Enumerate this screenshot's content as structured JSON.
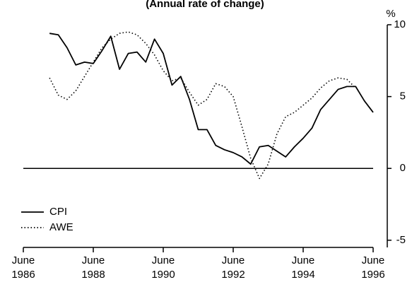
{
  "chart_data": {
    "type": "line",
    "title": "(Annual rate of change)",
    "y_unit": "%",
    "x": [
      1987.25,
      1987.5,
      1987.75,
      1988,
      1988.25,
      1988.5,
      1988.75,
      1989,
      1989.25,
      1989.5,
      1989.75,
      1990,
      1990.25,
      1990.5,
      1990.75,
      1991,
      1991.25,
      1991.5,
      1991.75,
      1992,
      1992.25,
      1992.5,
      1992.75,
      1993,
      1993.25,
      1993.5,
      1993.75,
      1994,
      1994.25,
      1994.5,
      1994.75,
      1995,
      1995.25,
      1995.5,
      1995.75,
      1996,
      1996.25,
      1996.5
    ],
    "series": [
      {
        "name": "CPI",
        "color": "#000000",
        "style": "solid",
        "values": [
          9.4,
          9.3,
          8.4,
          7.2,
          7.4,
          7.3,
          8.2,
          9.2,
          6.9,
          8.0,
          8.1,
          7.4,
          9.0,
          8.0,
          5.8,
          6.4,
          4.8,
          2.7,
          2.7,
          1.6,
          1.3,
          1.1,
          0.8,
          0.3,
          1.5,
          1.6,
          1.2,
          0.8,
          1.5,
          2.1,
          2.8,
          4.1,
          4.8,
          5.5,
          5.7,
          5.7,
          4.7,
          3.9
        ]
      },
      {
        "name": "AWE",
        "color": "#000000",
        "style": "dotted",
        "values": [
          6.3,
          5.1,
          4.8,
          5.4,
          6.4,
          7.4,
          8.4,
          9.0,
          9.4,
          9.5,
          9.3,
          8.7,
          7.9,
          6.8,
          6.1,
          6.3,
          5.3,
          4.4,
          4.8,
          5.9,
          5.7,
          5.0,
          2.9,
          0.7,
          -0.7,
          0.3,
          2.4,
          3.6,
          3.9,
          4.4,
          4.9,
          5.6,
          6.1,
          6.3,
          6.2,
          5.6,
          null,
          null
        ]
      }
    ],
    "xlim": [
      1986.5,
      1996.5
    ],
    "xticks": [
      {
        "value": 1986.5,
        "label": "June 1986"
      },
      {
        "value": 1988.5,
        "label": "June 1988"
      },
      {
        "value": 1990.5,
        "label": "June 1990"
      },
      {
        "value": 1992.5,
        "label": "June 1992"
      },
      {
        "value": 1994.5,
        "label": "June 1994"
      },
      {
        "value": 1996.5,
        "label": "June 1996"
      }
    ],
    "ylim": [
      -5.5,
      10
    ],
    "yticks": [
      -5,
      0,
      5,
      10
    ],
    "zero_line": true,
    "legend": "lower-left"
  }
}
